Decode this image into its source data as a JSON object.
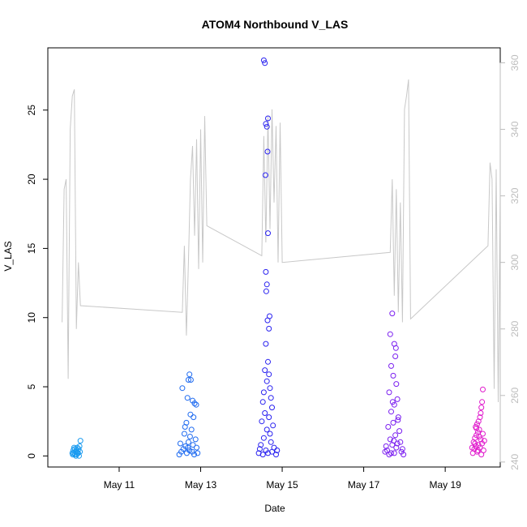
{
  "chart_data": {
    "type": "scatter",
    "title": "ATOM4 Northbound V_LAS",
    "xlabel": "Date",
    "ylabel": "V_LAS",
    "x_ticks": [
      "May 11",
      "May 13",
      "May 15",
      "May 17",
      "May 19"
    ],
    "x_tick_days": [
      11,
      13,
      15,
      17,
      19
    ],
    "xlim": [
      9.25,
      20.35
    ],
    "ylim_left": [
      -0.8,
      29.5
    ],
    "ylim_right": [
      238.5,
      364.5
    ],
    "y_ticks_left": [
      0,
      5,
      10,
      15,
      20,
      25
    ],
    "y_ticks_right": [
      240,
      260,
      280,
      300,
      320,
      340,
      360
    ],
    "scatter_series": [
      {
        "day": 9.95,
        "spread": 0.22,
        "color": "#1a9bf0",
        "points": [
          [
            0.1,
            0.1
          ],
          [
            0.2,
            0.2
          ],
          [
            0.3,
            0.5
          ],
          [
            0.4,
            0.3
          ],
          [
            0.5,
            0.1
          ],
          [
            0.6,
            0.6
          ],
          [
            0.7,
            0.2
          ],
          [
            0.8,
            0.0
          ],
          [
            0.9,
            0.3
          ],
          [
            0.15,
            0.4
          ],
          [
            0.35,
            0.1
          ],
          [
            0.55,
            0.3
          ],
          [
            0.75,
            0.5
          ],
          [
            0.95,
            1.1
          ],
          [
            0.85,
            0.7
          ],
          [
            0.65,
            0.2
          ],
          [
            0.45,
            0.0
          ],
          [
            0.25,
            0.6
          ],
          [
            0.05,
            0.2
          ],
          [
            0.5,
            0.4
          ]
        ]
      },
      {
        "day": 12.7,
        "spread": 0.5,
        "color": "#1f6bf0",
        "points": [
          [
            0.2,
            4.9
          ],
          [
            0.5,
            5.5
          ],
          [
            0.55,
            5.9
          ],
          [
            0.45,
            4.2
          ],
          [
            0.7,
            4.0
          ],
          [
            0.8,
            3.8
          ],
          [
            0.6,
            3.0
          ],
          [
            0.4,
            2.4
          ],
          [
            0.75,
            2.8
          ],
          [
            0.3,
            1.6
          ],
          [
            0.65,
            1.9
          ],
          [
            0.85,
            1.2
          ],
          [
            0.1,
            0.9
          ],
          [
            0.5,
            1.0
          ],
          [
            0.9,
            0.6
          ],
          [
            0.35,
            0.7
          ],
          [
            0.25,
            0.5
          ],
          [
            0.55,
            0.4
          ],
          [
            0.15,
            0.3
          ],
          [
            0.95,
            0.2
          ],
          [
            0.05,
            0.1
          ],
          [
            0.68,
            0.3
          ],
          [
            0.78,
            0.1
          ],
          [
            0.42,
            0.2
          ],
          [
            0.62,
            5.5
          ],
          [
            0.88,
            3.7
          ],
          [
            0.33,
            2.1
          ],
          [
            0.58,
            1.4
          ],
          [
            0.72,
            0.8
          ],
          [
            0.48,
            0.6
          ]
        ]
      },
      {
        "day": 14.65,
        "spread": 0.5,
        "color": "#2a22f0",
        "points": [
          [
            0.3,
            28.6
          ],
          [
            0.35,
            28.4
          ],
          [
            0.4,
            24.0
          ],
          [
            0.45,
            23.8
          ],
          [
            0.5,
            24.4
          ],
          [
            0.38,
            20.3
          ],
          [
            0.48,
            22.0
          ],
          [
            0.5,
            16.1
          ],
          [
            0.4,
            13.3
          ],
          [
            0.45,
            12.4
          ],
          [
            0.42,
            11.9
          ],
          [
            0.58,
            10.1
          ],
          [
            0.48,
            9.8
          ],
          [
            0.55,
            9.2
          ],
          [
            0.4,
            8.1
          ],
          [
            0.5,
            6.8
          ],
          [
            0.35,
            6.2
          ],
          [
            0.55,
            5.9
          ],
          [
            0.45,
            5.4
          ],
          [
            0.6,
            4.9
          ],
          [
            0.3,
            4.6
          ],
          [
            0.65,
            4.2
          ],
          [
            0.25,
            3.9
          ],
          [
            0.7,
            3.5
          ],
          [
            0.35,
            3.1
          ],
          [
            0.55,
            2.8
          ],
          [
            0.2,
            2.5
          ],
          [
            0.75,
            2.2
          ],
          [
            0.45,
            1.9
          ],
          [
            0.6,
            1.6
          ],
          [
            0.3,
            1.3
          ],
          [
            0.65,
            1.0
          ],
          [
            0.15,
            0.8
          ],
          [
            0.8,
            0.6
          ],
          [
            0.4,
            0.4
          ],
          [
            0.5,
            0.2
          ],
          [
            0.25,
            0.1
          ],
          [
            0.7,
            0.3
          ],
          [
            0.1,
            0.5
          ],
          [
            0.9,
            0.1
          ],
          [
            0.05,
            0.2
          ],
          [
            0.95,
            0.4
          ]
        ]
      },
      {
        "day": 17.75,
        "spread": 0.5,
        "color": "#7b1ff0",
        "points": [
          [
            0.4,
            10.3
          ],
          [
            0.3,
            8.8
          ],
          [
            0.5,
            8.1
          ],
          [
            0.55,
            7.2
          ],
          [
            0.35,
            6.5
          ],
          [
            0.45,
            5.8
          ],
          [
            0.6,
            5.2
          ],
          [
            0.25,
            4.6
          ],
          [
            0.65,
            4.1
          ],
          [
            0.5,
            3.7
          ],
          [
            0.35,
            3.2
          ],
          [
            0.7,
            2.8
          ],
          [
            0.45,
            2.4
          ],
          [
            0.2,
            2.1
          ],
          [
            0.75,
            1.8
          ],
          [
            0.55,
            1.5
          ],
          [
            0.3,
            1.2
          ],
          [
            0.8,
            1.0
          ],
          [
            0.4,
            0.8
          ],
          [
            0.6,
            0.6
          ],
          [
            0.15,
            0.4
          ],
          [
            0.85,
            0.3
          ],
          [
            0.5,
            0.2
          ],
          [
            0.25,
            0.1
          ],
          [
            0.9,
            0.5
          ],
          [
            0.1,
            0.7
          ],
          [
            0.65,
            0.9
          ],
          [
            0.35,
            0.2
          ],
          [
            0.95,
            0.1
          ],
          [
            0.05,
            0.3
          ],
          [
            0.58,
            7.8
          ],
          [
            0.42,
            3.9
          ],
          [
            0.68,
            2.6
          ],
          [
            0.48,
            1.1
          ]
        ]
      },
      {
        "day": 19.8,
        "spread": 0.35,
        "color": "#e01acc",
        "points": [
          [
            0.85,
            4.8
          ],
          [
            0.8,
            3.9
          ],
          [
            0.75,
            3.5
          ],
          [
            0.7,
            3.1
          ],
          [
            0.65,
            2.8
          ],
          [
            0.55,
            2.5
          ],
          [
            0.45,
            2.3
          ],
          [
            0.35,
            2.1
          ],
          [
            0.6,
            1.9
          ],
          [
            0.5,
            1.7
          ],
          [
            0.4,
            1.5
          ],
          [
            0.3,
            1.3
          ],
          [
            0.7,
            1.2
          ],
          [
            0.2,
            1.0
          ],
          [
            0.8,
            0.9
          ],
          [
            0.55,
            0.8
          ],
          [
            0.35,
            0.7
          ],
          [
            0.65,
            0.6
          ],
          [
            0.25,
            0.5
          ],
          [
            0.9,
            0.4
          ],
          [
            0.45,
            0.3
          ],
          [
            0.15,
            0.2
          ],
          [
            0.75,
            0.1
          ],
          [
            0.5,
            0.4
          ],
          [
            0.3,
            0.9
          ],
          [
            0.1,
            0.6
          ],
          [
            0.95,
            1.1
          ],
          [
            0.6,
            1.4
          ],
          [
            0.4,
            2.0
          ],
          [
            0.85,
            1.6
          ]
        ]
      }
    ],
    "line_series": {
      "color": "#c8c8c8",
      "axis": "right",
      "points": [
        [
          9.6,
          282
        ],
        [
          9.65,
          322
        ],
        [
          9.7,
          325
        ],
        [
          9.75,
          265
        ],
        [
          9.8,
          340
        ],
        [
          9.85,
          350
        ],
        [
          9.9,
          352
        ],
        [
          9.95,
          280
        ],
        [
          10.0,
          300
        ],
        [
          10.05,
          287
        ],
        [
          12.55,
          285
        ],
        [
          12.6,
          305
        ],
        [
          12.65,
          278
        ],
        [
          12.7,
          300
        ],
        [
          12.75,
          325
        ],
        [
          12.8,
          335
        ],
        [
          12.85,
          308
        ],
        [
          12.9,
          337
        ],
        [
          12.95,
          298
        ],
        [
          13.0,
          340
        ],
        [
          13.05,
          300
        ],
        [
          13.1,
          344
        ],
        [
          13.15,
          311
        ],
        [
          14.5,
          302
        ],
        [
          14.55,
          338
        ],
        [
          14.6,
          306
        ],
        [
          14.65,
          344
        ],
        [
          14.7,
          310
        ],
        [
          14.75,
          346
        ],
        [
          14.8,
          318
        ],
        [
          14.85,
          341
        ],
        [
          14.9,
          300
        ],
        [
          14.95,
          342
        ],
        [
          15.0,
          300
        ],
        [
          17.65,
          303
        ],
        [
          17.7,
          325
        ],
        [
          17.75,
          290
        ],
        [
          17.8,
          322
        ],
        [
          17.85,
          285
        ],
        [
          17.9,
          318
        ],
        [
          17.95,
          282
        ],
        [
          18.0,
          346
        ],
        [
          18.05,
          350
        ],
        [
          18.1,
          355
        ],
        [
          18.15,
          283
        ],
        [
          20.05,
          305
        ],
        [
          20.1,
          330
        ],
        [
          20.15,
          325
        ],
        [
          20.2,
          262
        ],
        [
          20.25,
          328
        ],
        [
          20.3,
          258
        ],
        [
          20.35,
          320
        ]
      ]
    }
  }
}
